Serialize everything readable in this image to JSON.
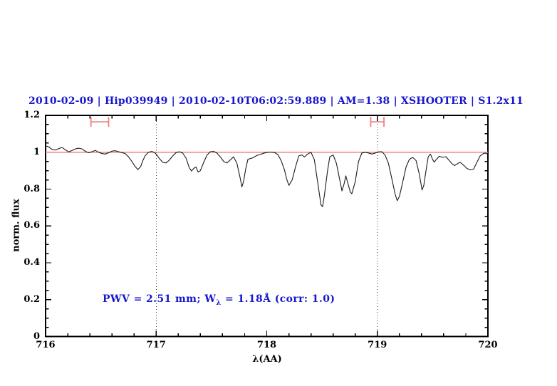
{
  "colors": {
    "title_blue": "#1717cd",
    "annotation_blue": "#1717cd",
    "continuum_red": "#f08080",
    "range_marker_red": "#f08080",
    "spectrum_black": "#1c1c1c",
    "axis_black": "#000000",
    "dotted_line_gray": "#3a3a3a"
  },
  "annotation": {
    "prefix": "PWV = 2.51 mm; W",
    "subscript": "λ",
    "suffix": " = 1.18Å (corr: 1.0)"
  },
  "chart_data": {
    "type": "line",
    "title": "2010-02-09 | Hip039949 | 2010-02-10T06:02:59.889 | AM=1.38 | XSHOOTER | S1.2x11",
    "xlabel": "λ(AA)",
    "ylabel": "norm. flux",
    "xlim": [
      716,
      720
    ],
    "ylim": [
      0,
      1.2
    ],
    "x_ticks": [
      716,
      717,
      718,
      719,
      720
    ],
    "x_tick_labels": [
      "716",
      "717",
      "718",
      "719",
      "720"
    ],
    "y_ticks": [
      0,
      0.2,
      0.4,
      0.6,
      0.8,
      1,
      1.2
    ],
    "y_tick_labels": [
      "0",
      "0.2",
      "0.4",
      "0.6",
      "0.8",
      "1",
      "1.2"
    ],
    "x_minor_step": 0.2,
    "y_minor_step": 0.05,
    "grid": "off",
    "legend": "none",
    "dotted_vlines": [
      717,
      719
    ],
    "continuum_level": 1.0,
    "range_markers": [
      {
        "x_center": 716.49,
        "x_half_width": 0.08,
        "y": 1.165,
        "cap_half_height": 0.027
      },
      {
        "x_center": 719.0,
        "x_half_width": 0.06,
        "y": 1.165,
        "cap_half_height": 0.027
      }
    ],
    "series": [
      {
        "name": "normalized telluric spectrum",
        "points": [
          [
            716.0,
            1.035
          ],
          [
            716.03,
            1.028
          ],
          [
            716.06,
            1.015
          ],
          [
            716.09,
            1.012
          ],
          [
            716.12,
            1.02
          ],
          [
            716.15,
            1.026
          ],
          [
            716.18,
            1.012
          ],
          [
            716.21,
            1.002
          ],
          [
            716.24,
            1.01
          ],
          [
            716.27,
            1.018
          ],
          [
            716.3,
            1.022
          ],
          [
            716.33,
            1.018
          ],
          [
            716.36,
            1.005
          ],
          [
            716.39,
            0.997
          ],
          [
            716.42,
            1.003
          ],
          [
            716.45,
            1.01
          ],
          [
            716.48,
            1.0
          ],
          [
            716.51,
            0.993
          ],
          [
            716.54,
            0.99
          ],
          [
            716.57,
            0.997
          ],
          [
            716.6,
            1.006
          ],
          [
            716.63,
            1.008
          ],
          [
            716.66,
            1.003
          ],
          [
            716.69,
            0.998
          ],
          [
            716.72,
            0.993
          ],
          [
            716.75,
            0.975
          ],
          [
            716.78,
            0.95
          ],
          [
            716.81,
            0.922
          ],
          [
            716.835,
            0.906
          ],
          [
            716.86,
            0.922
          ],
          [
            716.88,
            0.955
          ],
          [
            716.9,
            0.98
          ],
          [
            716.93,
            1.0
          ],
          [
            716.96,
            1.004
          ],
          [
            716.98,
            1.0
          ],
          [
            717.0,
            0.99
          ],
          [
            717.03,
            0.965
          ],
          [
            717.06,
            0.945
          ],
          [
            717.09,
            0.942
          ],
          [
            717.12,
            0.958
          ],
          [
            717.15,
            0.98
          ],
          [
            717.18,
            0.998
          ],
          [
            717.21,
            1.003
          ],
          [
            717.24,
            0.995
          ],
          [
            717.27,
            0.968
          ],
          [
            717.3,
            0.915
          ],
          [
            717.32,
            0.898
          ],
          [
            717.34,
            0.912
          ],
          [
            717.36,
            0.92
          ],
          [
            717.38,
            0.892
          ],
          [
            717.4,
            0.9
          ],
          [
            717.43,
            0.945
          ],
          [
            717.46,
            0.985
          ],
          [
            717.49,
            1.003
          ],
          [
            717.52,
            1.005
          ],
          [
            717.55,
            0.995
          ],
          [
            717.58,
            0.975
          ],
          [
            717.61,
            0.95
          ],
          [
            717.64,
            0.942
          ],
          [
            717.67,
            0.958
          ],
          [
            717.7,
            0.975
          ],
          [
            717.73,
            0.94
          ],
          [
            717.76,
            0.86
          ],
          [
            717.775,
            0.812
          ],
          [
            717.79,
            0.84
          ],
          [
            717.81,
            0.91
          ],
          [
            717.83,
            0.962
          ],
          [
            717.87,
            0.969
          ],
          [
            717.91,
            0.982
          ],
          [
            717.94,
            0.988
          ],
          [
            717.98,
            0.996
          ],
          [
            718.01,
            1.0
          ],
          [
            718.04,
            1.001
          ],
          [
            718.07,
            0.998
          ],
          [
            718.1,
            0.988
          ],
          [
            718.13,
            0.955
          ],
          [
            718.16,
            0.905
          ],
          [
            718.18,
            0.855
          ],
          [
            718.2,
            0.82
          ],
          [
            718.23,
            0.85
          ],
          [
            718.26,
            0.92
          ],
          [
            718.29,
            0.98
          ],
          [
            718.32,
            0.985
          ],
          [
            718.34,
            0.974
          ],
          [
            718.37,
            0.99
          ],
          [
            718.4,
            1.0
          ],
          [
            718.43,
            0.96
          ],
          [
            718.46,
            0.84
          ],
          [
            718.49,
            0.715
          ],
          [
            718.505,
            0.705
          ],
          [
            718.52,
            0.76
          ],
          [
            718.55,
            0.9
          ],
          [
            718.57,
            0.975
          ],
          [
            718.6,
            0.985
          ],
          [
            718.63,
            0.94
          ],
          [
            718.66,
            0.85
          ],
          [
            718.68,
            0.79
          ],
          [
            718.7,
            0.83
          ],
          [
            718.715,
            0.872
          ],
          [
            718.73,
            0.84
          ],
          [
            718.755,
            0.785
          ],
          [
            718.77,
            0.775
          ],
          [
            718.8,
            0.84
          ],
          [
            718.83,
            0.95
          ],
          [
            718.86,
            0.995
          ],
          [
            718.89,
            1.0
          ],
          [
            718.92,
            0.996
          ],
          [
            718.95,
            0.99
          ],
          [
            718.98,
            0.995
          ],
          [
            719.01,
            1.002
          ],
          [
            719.04,
            1.003
          ],
          [
            719.07,
            0.985
          ],
          [
            719.1,
            0.94
          ],
          [
            719.13,
            0.86
          ],
          [
            719.16,
            0.775
          ],
          [
            719.18,
            0.737
          ],
          [
            719.2,
            0.76
          ],
          [
            719.23,
            0.84
          ],
          [
            719.26,
            0.92
          ],
          [
            719.29,
            0.962
          ],
          [
            719.32,
            0.972
          ],
          [
            719.35,
            0.955
          ],
          [
            719.38,
            0.88
          ],
          [
            719.405,
            0.795
          ],
          [
            719.42,
            0.82
          ],
          [
            719.44,
            0.9
          ],
          [
            719.46,
            0.975
          ],
          [
            719.48,
            0.99
          ],
          [
            719.5,
            0.96
          ],
          [
            719.515,
            0.946
          ],
          [
            719.53,
            0.958
          ],
          [
            719.56,
            0.978
          ],
          [
            719.59,
            0.972
          ],
          [
            719.62,
            0.976
          ],
          [
            719.65,
            0.955
          ],
          [
            719.68,
            0.935
          ],
          [
            719.7,
            0.928
          ],
          [
            719.73,
            0.94
          ],
          [
            719.75,
            0.945
          ],
          [
            719.78,
            0.93
          ],
          [
            719.81,
            0.912
          ],
          [
            719.84,
            0.904
          ],
          [
            719.87,
            0.908
          ],
          [
            719.9,
            0.945
          ],
          [
            719.93,
            0.98
          ],
          [
            719.96,
            0.993
          ],
          [
            719.98,
            0.995
          ],
          [
            720.0,
            0.988
          ]
        ]
      }
    ]
  }
}
